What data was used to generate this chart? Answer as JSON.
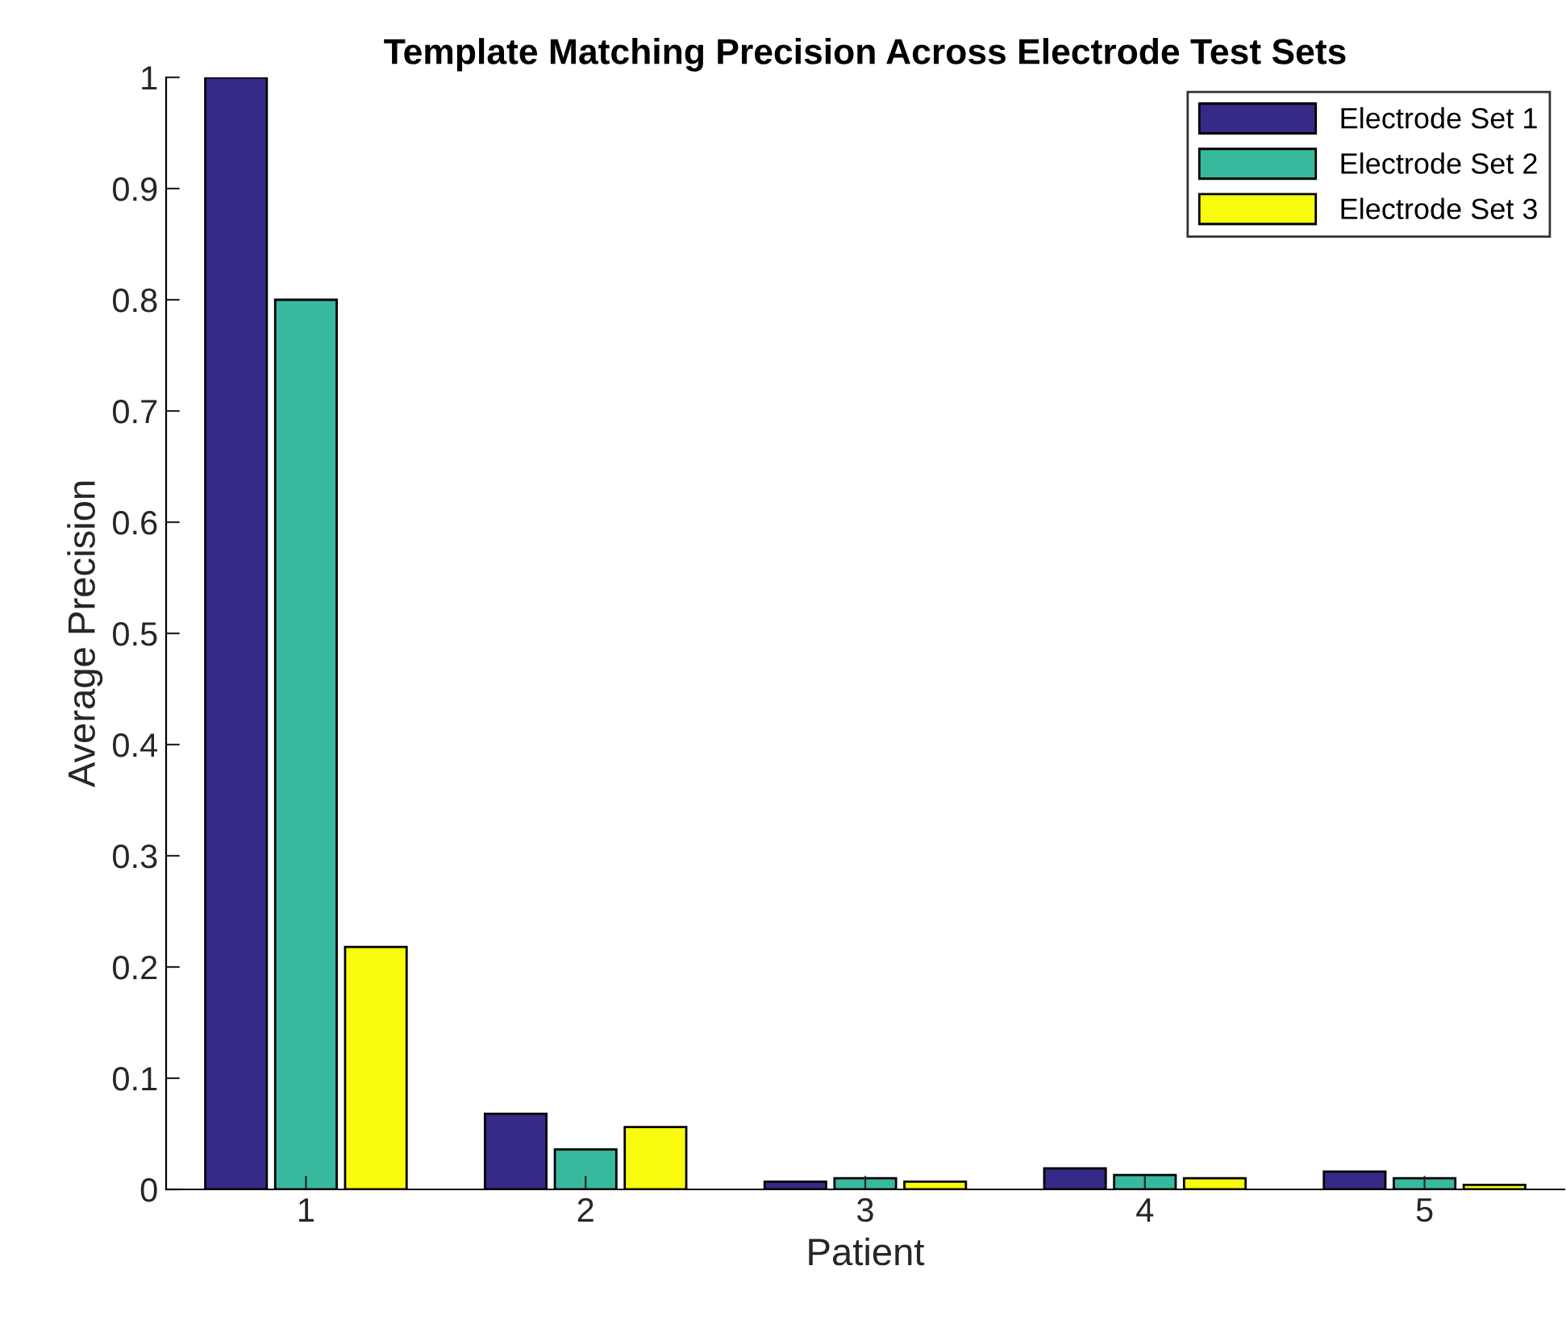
{
  "chart_data": {
    "type": "bar",
    "title": "Template Matching Precision Across Electrode Test Sets",
    "xlabel": "Patient",
    "ylabel": "Average Precision",
    "categories": [
      "1",
      "2",
      "3",
      "4",
      "5"
    ],
    "series": [
      {
        "name": "Electrode Set 1",
        "color": "#352a87",
        "values": [
          1.0,
          0.068,
          0.007,
          0.019,
          0.016
        ]
      },
      {
        "name": "Electrode Set 2",
        "color": "#38b99e",
        "values": [
          0.8,
          0.036,
          0.01,
          0.013,
          0.01
        ]
      },
      {
        "name": "Electrode Set 3",
        "color": "#f9fb0e",
        "values": [
          0.218,
          0.056,
          0.007,
          0.01,
          0.004
        ]
      }
    ],
    "ylim": [
      0,
      1
    ],
    "yticks": [
      0,
      0.1,
      0.2,
      0.3,
      0.4,
      0.5,
      0.6,
      0.7,
      0.8,
      0.9,
      1
    ],
    "grid": false,
    "legend": "top right"
  }
}
